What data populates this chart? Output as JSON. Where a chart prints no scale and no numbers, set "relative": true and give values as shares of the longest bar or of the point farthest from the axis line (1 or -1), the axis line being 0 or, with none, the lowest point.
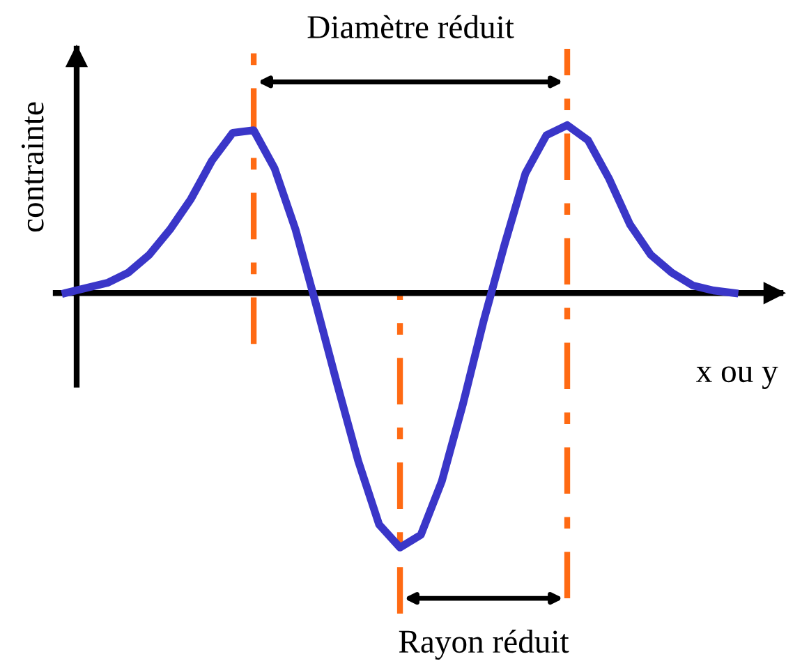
{
  "chart_data": {
    "type": "line",
    "relative": true,
    "xlabel": "x ou y",
    "ylabel": "contrainte",
    "categories": [
      null,
      null,
      null,
      null,
      null,
      null,
      null,
      null,
      null,
      null,
      null,
      null,
      null,
      null,
      null,
      null,
      null,
      null,
      null,
      null,
      null,
      null,
      null,
      null,
      null,
      null,
      null,
      null,
      null,
      null,
      null,
      null,
      null
    ],
    "series": [
      {
        "color": "#3a36c8",
        "values": [
          0,
          0.02,
          0.04,
          0.08,
          0.15,
          0.25,
          0.37,
          0.52,
          0.63,
          0.64,
          0.49,
          0.25,
          -0.05,
          -0.36,
          -0.66,
          -0.91,
          -1,
          -0.95,
          -0.74,
          -0.44,
          -0.11,
          0.19,
          0.47,
          0.62,
          0.66,
          0.6,
          0.45,
          0.27,
          0.15,
          0.08,
          0.03,
          0.01,
          0
        ]
      }
    ],
    "annotations": [
      "Diamètre réduit",
      "Rayon réduit"
    ],
    "legend": false,
    "marker": "none",
    "line_style": "solid"
  }
}
